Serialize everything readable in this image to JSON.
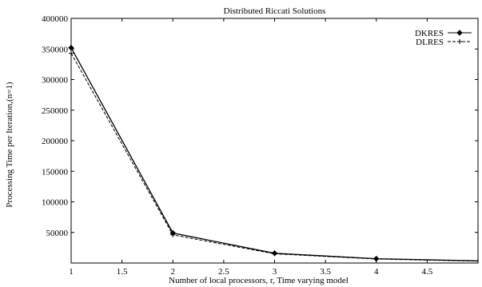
{
  "chart_data": {
    "type": "line",
    "title": "Distributed Riccati Solutions",
    "xlabel": "Number of local processors, r, Time varying model",
    "ylabel": "Processing Time per Iteration,(n=1)",
    "xlim": [
      1,
      5
    ],
    "ylim": [
      0,
      400000
    ],
    "xticks": [
      "1",
      "1.5",
      "2",
      "2.5",
      "3",
      "3.5",
      "4",
      "4.5"
    ],
    "yticks": [
      "50000",
      "100000",
      "150000",
      "200000",
      "250000",
      "300000",
      "350000",
      "400000"
    ],
    "legend_position": "top-right",
    "grid": false,
    "series": [
      {
        "name": "DKRES",
        "style": "solid",
        "marker": "diamond",
        "x": [
          1,
          2,
          3,
          4,
          5
        ],
        "values": [
          352000,
          49000,
          16000,
          7000,
          3500
        ]
      },
      {
        "name": "DLRES",
        "style": "dashed",
        "marker": "plus",
        "x": [
          1,
          2,
          3,
          4,
          5
        ],
        "values": [
          343000,
          46000,
          15000,
          6500,
          3000
        ]
      }
    ]
  }
}
